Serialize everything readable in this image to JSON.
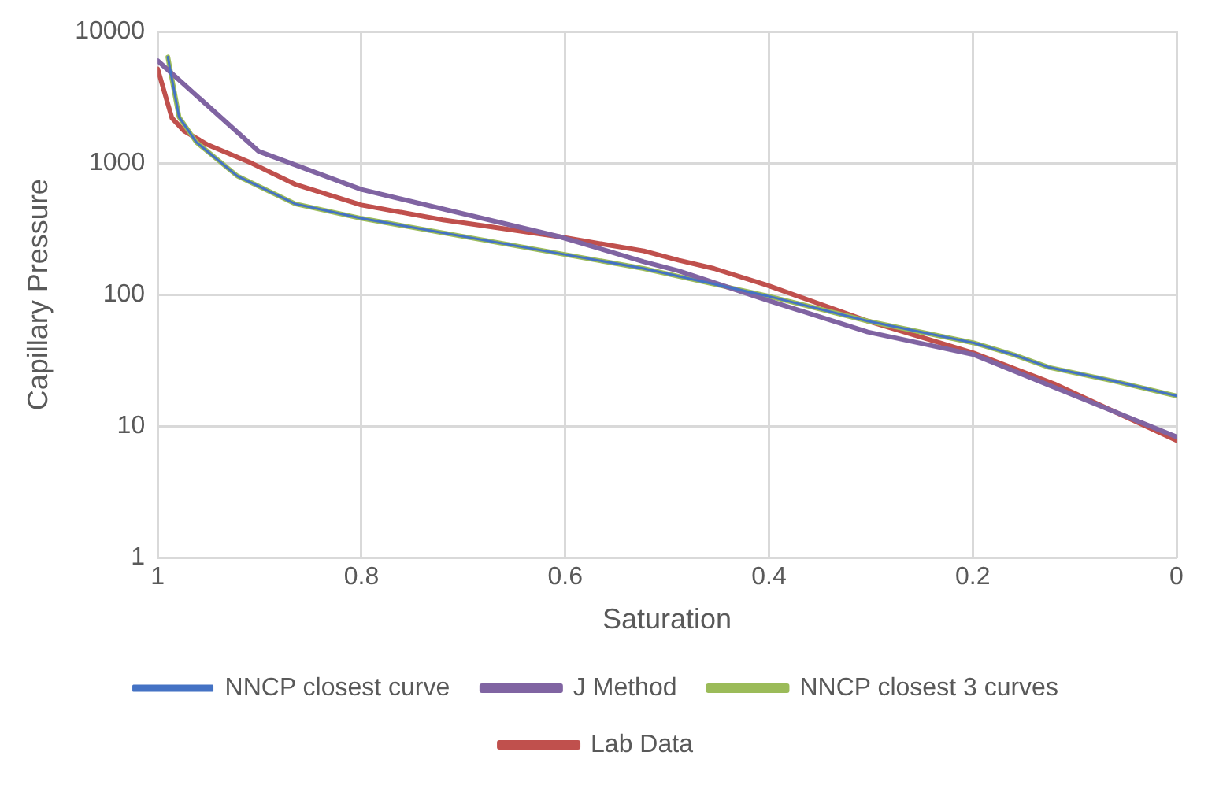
{
  "chart_data": {
    "type": "line",
    "xlabel": "Saturation",
    "ylabel": "Capillary Pressure",
    "log": "y",
    "grid": true,
    "legend": "bottom",
    "marker": "none",
    "line_style": "solid",
    "xlim": [
      1,
      0
    ],
    "xticks": [
      1,
      0.8,
      0.6,
      0.4,
      0.2,
      0
    ],
    "ylim": [
      1,
      10000
    ],
    "yticks": [
      1,
      10,
      100,
      1000,
      10000
    ],
    "series": [
      {
        "name": "NNCP closest curve",
        "color": "#4472c4",
        "x": [
          0.99,
          0.979,
          0.962,
          0.922,
          0.865,
          0.8,
          0.605,
          0.523,
          0.489,
          0.402,
          0.303,
          0.199,
          0.16,
          0.125,
          0.061,
          0
        ],
        "values": [
          6400,
          2240,
          1440,
          800,
          490,
          380,
          205,
          158,
          138,
          98,
          63,
          43,
          35,
          28,
          22,
          17
        ]
      },
      {
        "name": "Lab Data",
        "color": "#c0504d",
        "x": [
          1,
          0.986,
          0.974,
          0.951,
          0.908,
          0.865,
          0.8,
          0.72,
          0.605,
          0.523,
          0.489,
          0.454,
          0.402,
          0.303,
          0.199,
          0.12,
          0
        ],
        "values": [
          5200,
          2200,
          1750,
          1380,
          1000,
          690,
          480,
          370,
          275,
          215,
          183,
          158,
          118,
          63,
          36,
          21,
          7.8
        ]
      },
      {
        "name": "NNCP closest 3 curves",
        "color": "#9bbb59",
        "x": [
          0.99,
          0.979,
          0.962,
          0.922,
          0.865,
          0.8,
          0.605,
          0.523,
          0.489,
          0.402,
          0.303,
          0.199,
          0.16,
          0.125,
          0.061,
          0
        ],
        "values": [
          6400,
          2240,
          1440,
          800,
          490,
          380,
          205,
          158,
          138,
          98,
          63,
          43,
          35,
          28,
          22,
          17
        ]
      },
      {
        "name": "J Method",
        "color": "#8064a2",
        "x": [
          1,
          0.901,
          0.8,
          0.605,
          0.523,
          0.489,
          0.402,
          0.303,
          0.199,
          0
        ],
        "values": [
          6000,
          1230,
          630,
          275,
          178,
          152,
          91,
          52,
          35,
          8.3
        ]
      }
    ]
  }
}
